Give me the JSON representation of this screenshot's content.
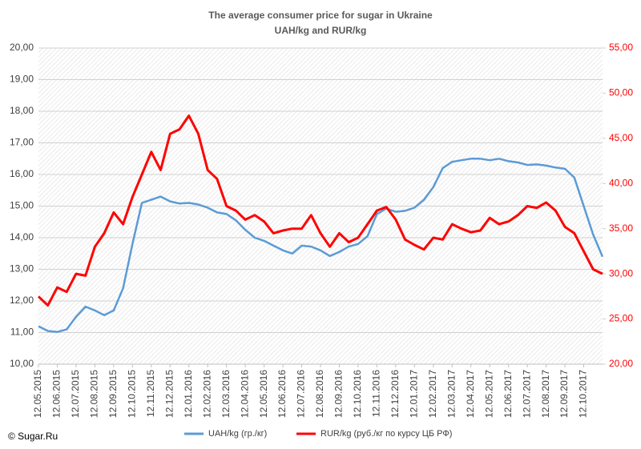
{
  "chart_data": {
    "type": "line",
    "title": "The average consumer price for sugar in Ukraine",
    "subtitle": "UAH/kg and RUR/kg",
    "annotation": "© Sugar.Ru",
    "categories": [
      "12.05.2015",
      null,
      "12.06.2015",
      null,
      "12.07.2015",
      null,
      "12.08.2015",
      null,
      "12.09.2015",
      null,
      "12.10.2015",
      null,
      "12.11.2015",
      null,
      "12.12.2015",
      null,
      "12.01.2016",
      null,
      "12.02.2016",
      null,
      "12.03.2016",
      null,
      "12.04.2016",
      null,
      "12.05.2016",
      null,
      "12.06.2016",
      null,
      "12.07.2016",
      null,
      "12.08.2016",
      null,
      "12.09.2016",
      null,
      "12.10.2016",
      null,
      "12.11.2016",
      null,
      "12.12.2016",
      null,
      "12.01.2017",
      null,
      "12.02.2017",
      null,
      "12.03.2017",
      null,
      "12.04.2017",
      null,
      "12.05.2017",
      null,
      "12.06.2017",
      null,
      "12.07.2017",
      null,
      "12.08.2017",
      null,
      "12.09.2017",
      null,
      "12.10.2017",
      null,
      null
    ],
    "series": [
      {
        "name": "UAH/kg  (гр./кг)",
        "color": "#5b9bd5",
        "values": [
          11.2,
          11.05,
          11.02,
          11.1,
          11.5,
          11.82,
          11.7,
          11.55,
          11.7,
          12.4,
          13.8,
          15.1,
          15.2,
          15.3,
          15.15,
          15.08,
          15.1,
          15.05,
          14.95,
          14.8,
          14.75,
          14.55,
          14.25,
          14.0,
          13.9,
          13.75,
          13.6,
          13.5,
          13.75,
          13.72,
          13.6,
          13.42,
          13.55,
          13.72,
          13.8,
          14.05,
          14.75,
          14.92,
          14.82,
          14.85,
          14.95,
          15.2,
          15.6,
          16.2,
          16.4,
          16.45,
          16.5,
          16.5,
          16.45,
          16.5,
          16.42,
          16.38,
          16.3,
          16.32,
          16.28,
          16.22,
          16.18,
          15.9,
          15.0,
          14.1,
          13.4
        ]
      },
      {
        "name": "RUR/kg (руб./кг по курсу ЦБ РФ)",
        "color": "#ff0000",
        "axis": "y2",
        "values": [
          27.5,
          26.5,
          28.5,
          28,
          30,
          29.8,
          33,
          34.5,
          36.8,
          35.5,
          38.5,
          41,
          43.5,
          41.5,
          45.5,
          46,
          47.5,
          45.5,
          41.5,
          40.5,
          37.5,
          37,
          36,
          36.5,
          35.8,
          34.5,
          34.8,
          35,
          35,
          36.5,
          34.5,
          33,
          34.5,
          33.5,
          34,
          35.5,
          37,
          37.4,
          36,
          33.8,
          33.2,
          32.7,
          34,
          33.8,
          35.5,
          35,
          34.6,
          34.8,
          36.2,
          35.5,
          35.8,
          36.5,
          37.5,
          37.3,
          37.9,
          37,
          35.2,
          34.5,
          32.5,
          30.5,
          30
        ]
      }
    ],
    "ylim": [
      10,
      20
    ],
    "yticks": [
      {
        "value": 10,
        "label": "10,00"
      },
      {
        "value": 11,
        "label": "11,00"
      },
      {
        "value": 12,
        "label": "12,00"
      },
      {
        "value": 13,
        "label": "13,00"
      },
      {
        "value": 14,
        "label": "14,00"
      },
      {
        "value": 15,
        "label": "15,00"
      },
      {
        "value": 16,
        "label": "16,00"
      },
      {
        "value": 17,
        "label": "17,00"
      },
      {
        "value": 18,
        "label": "18,00"
      },
      {
        "value": 19,
        "label": "19,00"
      },
      {
        "value": 20,
        "label": "20,00"
      }
    ],
    "y2lim": [
      20,
      55
    ],
    "y2ticks": [
      {
        "value": 20,
        "label": "20,00"
      },
      {
        "value": 25,
        "label": "25,00"
      },
      {
        "value": 30,
        "label": "30,00"
      },
      {
        "value": 35,
        "label": "35,00"
      },
      {
        "value": 40,
        "label": "40,00"
      },
      {
        "value": 45,
        "label": "45,00"
      },
      {
        "value": 50,
        "label": "50,00"
      },
      {
        "value": 55,
        "label": "55,00"
      }
    ],
    "grid": true,
    "legend": "bottom"
  }
}
